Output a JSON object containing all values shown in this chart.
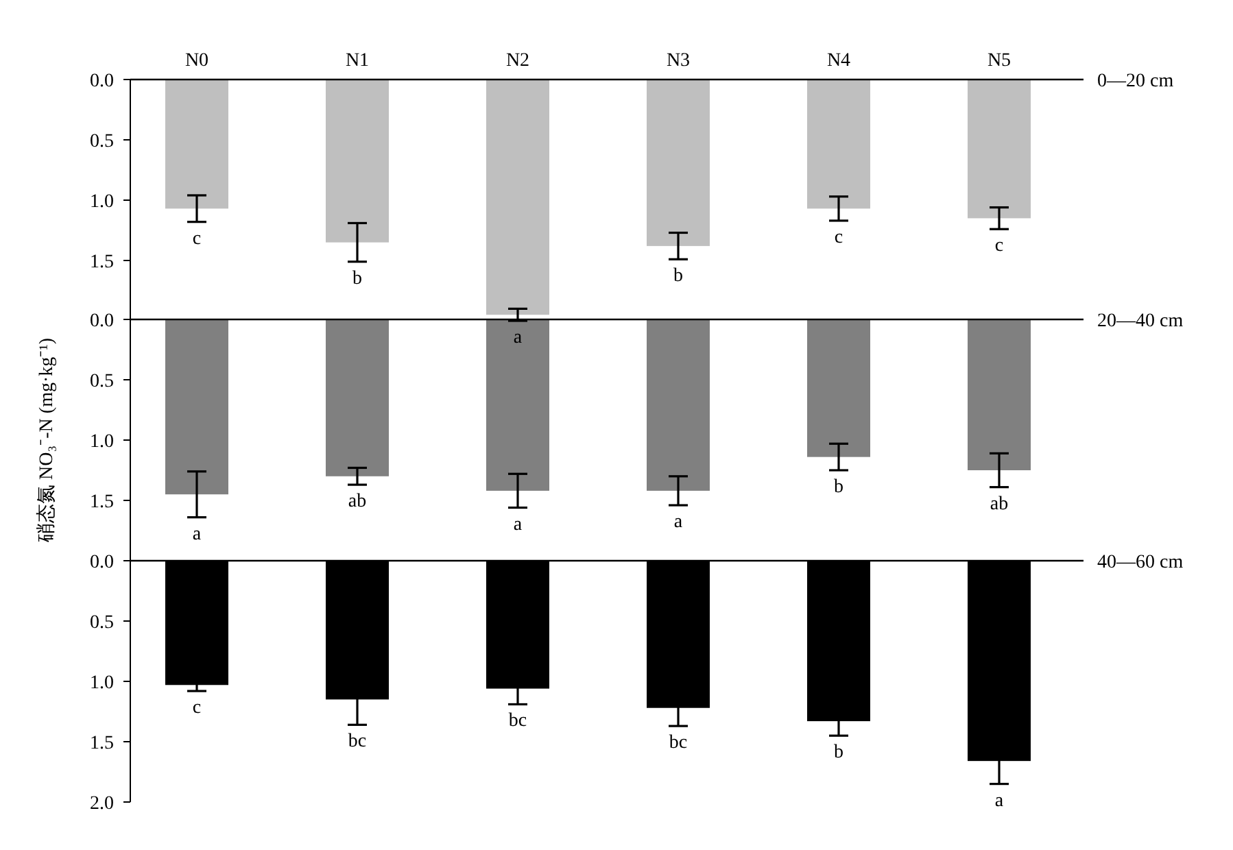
{
  "chart_data": [
    {
      "type": "bar",
      "categories": [
        "N0",
        "N1",
        "N2",
        "N3",
        "N4",
        "N5"
      ],
      "series": [
        {
          "color": "#bfbfbf",
          "values": [
            1.07,
            1.35,
            1.95,
            1.38,
            1.07,
            1.15
          ],
          "errors": [
            0.11,
            0.16,
            0.05,
            0.11,
            0.1,
            0.09
          ]
        }
      ],
      "ylim": [
        2.0,
        0.0
      ],
      "yticks": [
        {
          "value": 0,
          "label": "0.0"
        },
        {
          "value": 0.5,
          "label": "0.5"
        },
        {
          "value": 1,
          "label": "1.0"
        },
        {
          "value": 1.5,
          "label": "1.5"
        }
      ],
      "annotations": [
        {
          "text": "c",
          "x": "N0",
          "y": 1.18
        },
        {
          "text": "b",
          "x": "N1",
          "y": 1.51
        },
        {
          "text": "a",
          "x": "N2",
          "y": 2.0
        },
        {
          "text": "b",
          "x": "N3",
          "y": 1.49
        },
        {
          "text": "c",
          "x": "N4",
          "y": 1.17
        },
        {
          "text": "c",
          "x": "N5",
          "y": 1.24
        },
        "0—20 cm"
      ]
    },
    {
      "type": "bar",
      "ylabel": "硝态氮 NO₃⁻-N (mg·kg⁻¹)",
      "categories": [
        "N0",
        "N1",
        "N2",
        "N3",
        "N4",
        "N5"
      ],
      "tick_labels": "y",
      "series": [
        {
          "color": "#808080",
          "values": [
            1.45,
            1.3,
            1.42,
            1.42,
            1.14,
            1.25
          ],
          "errors": [
            0.19,
            0.07,
            0.14,
            0.12,
            0.11,
            0.14
          ]
        }
      ],
      "ylim": [
        2.0,
        0.0
      ],
      "yticks": [
        {
          "value": 0,
          "label": "0.0"
        },
        {
          "value": 0.5,
          "label": "0.5"
        },
        {
          "value": 1,
          "label": "1.0"
        },
        {
          "value": 1.5,
          "label": "1.5"
        }
      ],
      "annotations": [
        {
          "text": "a",
          "x": "N0",
          "y": 1.64
        },
        {
          "text": "ab",
          "x": "N1",
          "y": 1.37
        },
        {
          "text": "a",
          "x": "N2",
          "y": 1.56
        },
        {
          "text": "a",
          "x": "N3",
          "y": 1.54
        },
        {
          "text": "b",
          "x": "N4",
          "y": 1.25
        },
        {
          "text": "ab",
          "x": "N5",
          "y": 1.39
        },
        "20—40 cm"
      ]
    },
    {
      "type": "bar",
      "categories": [
        "N0",
        "N1",
        "N2",
        "N3",
        "N4",
        "N5"
      ],
      "tick_labels": "y",
      "series": [
        {
          "color": "#000000",
          "values": [
            1.03,
            1.15,
            1.06,
            1.22,
            1.33,
            1.66
          ],
          "errors": [
            0.05,
            0.21,
            0.13,
            0.15,
            0.12,
            0.19
          ]
        }
      ],
      "ylim": [
        2.0,
        0.0
      ],
      "yticks": [
        {
          "value": 0,
          "label": "0.0"
        },
        {
          "value": 0.5,
          "label": "0.5"
        },
        {
          "value": 1,
          "label": "1.0"
        },
        {
          "value": 1.5,
          "label": "1.5"
        },
        {
          "value": 2,
          "label": "2.0"
        }
      ],
      "annotations": [
        {
          "text": "c",
          "x": "N0",
          "y": 1.08
        },
        {
          "text": "bc",
          "x": "N1",
          "y": 1.36
        },
        {
          "text": "bc",
          "x": "N2",
          "y": 1.19
        },
        {
          "text": "bc",
          "x": "N3",
          "y": 1.37
        },
        {
          "text": "b",
          "x": "N4",
          "y": 1.45
        },
        {
          "text": "a",
          "x": "N5",
          "y": 1.85
        },
        "40—60 cm"
      ]
    }
  ]
}
